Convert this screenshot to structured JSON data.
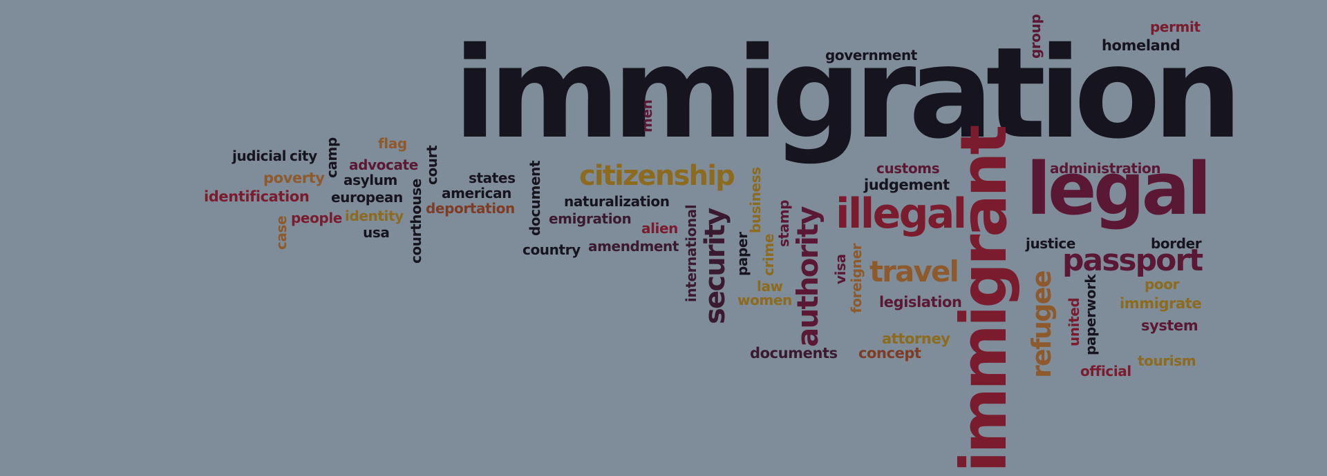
{
  "words": {
    "immigration": "immigration",
    "immigrant": "immigrant",
    "legal": "legal",
    "illegal": "illegal",
    "passport": "passport",
    "citizenship": "citizenship",
    "travel": "travel",
    "authority": "authority",
    "security": "security",
    "refugee": "refugee",
    "government": "government",
    "group": "group",
    "permit": "permit",
    "homeland": "homeland",
    "men": "men",
    "customs": "customs",
    "judgement": "judgement",
    "administration": "administration",
    "justice": "justice",
    "border": "border",
    "poor": "poor",
    "immigrate": "immigrate",
    "system": "system",
    "tourism": "tourism",
    "official": "official",
    "united": "united",
    "paperwork": "paperwork",
    "legislation": "legislation",
    "attorney": "attorney",
    "concept": "concept",
    "documents": "documents",
    "foreigner": "foreigner",
    "visa": "visa",
    "stamp": "stamp",
    "business": "business",
    "crime": "crime",
    "paper": "paper",
    "law": "law",
    "women": "women",
    "international": "international",
    "alien": "alien",
    "naturalization": "naturalization",
    "emigration": "emigration",
    "amendment": "amendment",
    "country": "country",
    "document": "document",
    "states": "states",
    "american": "american",
    "deportation": "deportation",
    "court": "court",
    "courthouse": "courthouse",
    "flag": "flag",
    "advocate": "advocate",
    "asylum": "asylum",
    "european": "european",
    "identity": "identity",
    "usa": "usa",
    "people": "people",
    "case": "case",
    "camp": "camp",
    "judicial": "judicial",
    "city": "city",
    "poverty": "poverty",
    "identification": "identification"
  },
  "colors": {
    "background": "#7f8c99",
    "dark": "#16141f",
    "wine": "#5b1834",
    "red": "#7a1c2e",
    "gold": "#8c6a1e"
  }
}
